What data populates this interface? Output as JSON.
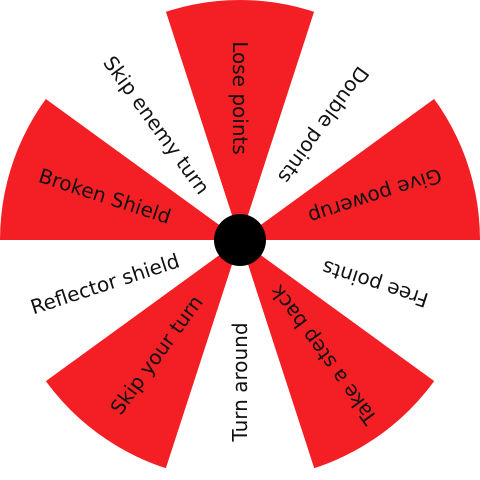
{
  "wheel": {
    "colors": {
      "red": "#f41f24",
      "white": "#ffffff",
      "hub": "#000000",
      "text": "#111111"
    },
    "segments": [
      {
        "label": "Lose points",
        "color": "red"
      },
      {
        "label": "Double points",
        "color": "white"
      },
      {
        "label": "Give powerup",
        "color": "red"
      },
      {
        "label": "Free points",
        "color": "white"
      },
      {
        "label": "Take a step back",
        "color": "red"
      },
      {
        "label": "Turn around",
        "color": "white"
      },
      {
        "label": "Skip your turn",
        "color": "red"
      },
      {
        "label": "Reflector shield",
        "color": "white"
      },
      {
        "label": "Broken Shield",
        "color": "red"
      },
      {
        "label": "Skip enemy turn",
        "color": "white"
      }
    ]
  }
}
